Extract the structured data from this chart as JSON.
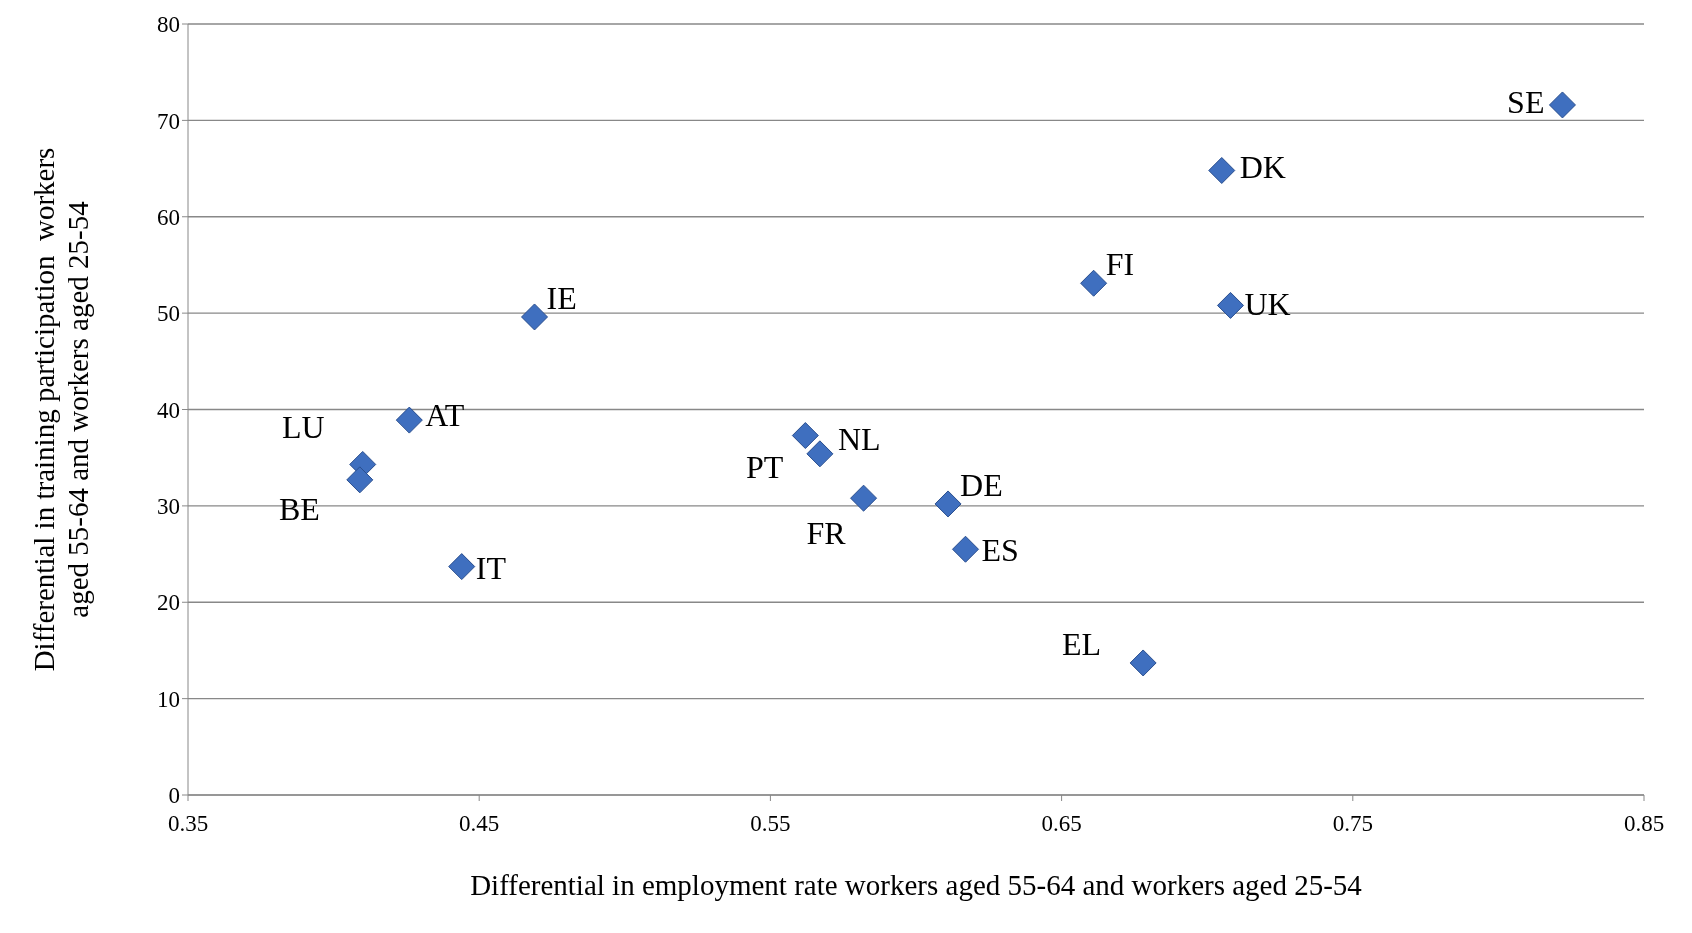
{
  "chart_data": {
    "type": "scatter",
    "xlabel": "Differential in employment rate workers aged 55-64 and workers aged 25-54",
    "ylabel": "Differential in training participation  workers\naged 55-64 and workers aged 25-54",
    "x": [
      0.822,
      0.705,
      0.661,
      0.708,
      0.469,
      0.426,
      0.41,
      0.409,
      0.444,
      0.562,
      0.567,
      0.582,
      0.611,
      0.617,
      0.678
    ],
    "values": [
      71.6,
      64.8,
      53.1,
      50.8,
      49.6,
      38.9,
      34.3,
      32.7,
      23.7,
      37.3,
      35.4,
      30.8,
      30.2,
      25.5,
      13.7
    ],
    "color": "#3f6fbf",
    "marker": "diamond",
    "grid": "y",
    "xlim": [
      0.35,
      0.85
    ],
    "xticks": [
      0.35,
      0.45,
      0.55,
      0.65,
      0.75,
      0.85
    ],
    "ylim": [
      0,
      80
    ],
    "yticks": [
      0,
      10,
      20,
      30,
      40,
      50,
      60,
      70,
      80
    ],
    "annotations": [
      {
        "text": "SE",
        "x": 0.822,
        "y": 71.6
      },
      {
        "text": "DK",
        "x": 0.705,
        "y": 64.8
      },
      {
        "text": "FI",
        "x": 0.661,
        "y": 53.1
      },
      {
        "text": "UK",
        "x": 0.708,
        "y": 50.8
      },
      {
        "text": "IE",
        "x": 0.469,
        "y": 49.6
      },
      {
        "text": "AT",
        "x": 0.426,
        "y": 38.9
      },
      {
        "text": "LU",
        "x": 0.41,
        "y": 34.3
      },
      {
        "text": "BE",
        "x": 0.409,
        "y": 32.7
      },
      {
        "text": "IT",
        "x": 0.444,
        "y": 23.7
      },
      {
        "text": "PT",
        "x": 0.562,
        "y": 37.3
      },
      {
        "text": "NL",
        "x": 0.567,
        "y": 35.4
      },
      {
        "text": "FR",
        "x": 0.582,
        "y": 30.8
      },
      {
        "text": "DE",
        "x": 0.611,
        "y": 30.2
      },
      {
        "text": "ES",
        "x": 0.617,
        "y": 25.5
      },
      {
        "text": "EL",
        "x": 0.678,
        "y": 13.7
      }
    ]
  }
}
